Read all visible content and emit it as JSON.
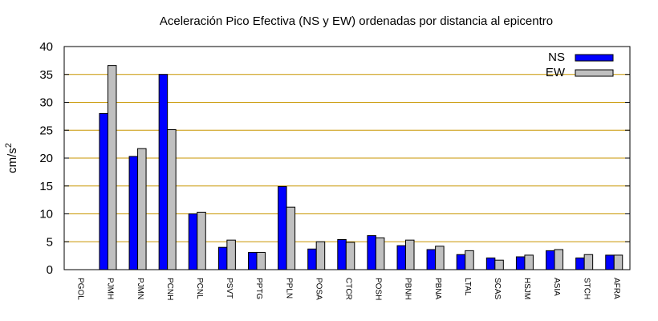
{
  "chart_data": {
    "type": "bar",
    "title": "Aceleración Pico Efectiva (NS y EW) ordenadas por distancia al epicentro",
    "xlabel": "",
    "ylabel": "cm/s",
    "ylabel_superscript": "2",
    "ylim": [
      0,
      40
    ],
    "yticks": [
      "0",
      "5",
      "10",
      "15",
      "20",
      "25",
      "30",
      "35",
      "40"
    ],
    "grid": "horizontal",
    "legend_position": "top-right",
    "categories": [
      "PGOL",
      "PJMH",
      "PJMN",
      "PCNH",
      "PCNL",
      "PSVT",
      "PPTG",
      "PPLN",
      "POSA",
      "CTCR",
      "POSH",
      "PBNH",
      "PBNA",
      "LTAL",
      "SCAS",
      "HSJM",
      "ASIA",
      "STCH",
      "AFRA"
    ],
    "series": [
      {
        "name": "NS",
        "color": "#0000ff",
        "values": [
          0,
          28,
          20.3,
          35,
          10,
          4,
          3.1,
          14.9,
          3.7,
          5.4,
          6.1,
          4.3,
          3.6,
          2.7,
          2.1,
          2.3,
          3.4,
          2.1,
          2.6
        ]
      },
      {
        "name": "EW",
        "color": "#c0c0c0",
        "values": [
          0,
          36.6,
          21.7,
          25.1,
          10.3,
          5.3,
          3.1,
          11.2,
          5.0,
          4.9,
          5.7,
          5.3,
          4.2,
          3.4,
          1.7,
          2.6,
          3.6,
          2.7,
          2.6
        ]
      }
    ],
    "gridline_color": "#c89600"
  }
}
